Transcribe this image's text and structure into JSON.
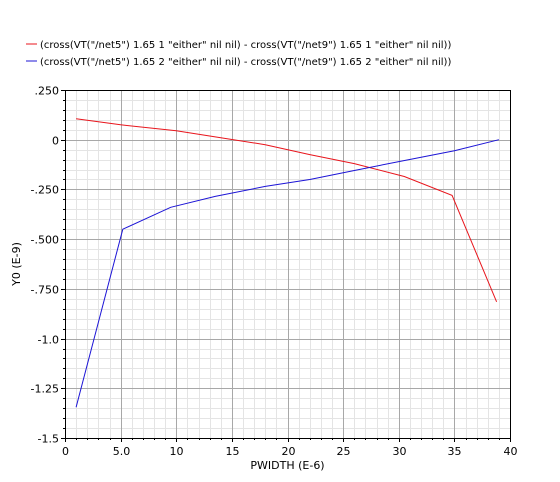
{
  "chart_data": {
    "type": "line",
    "title": "",
    "xlabel": "PWIDTH (E-6)",
    "ylabel": "Y0 (E-9)",
    "xlim": [
      0,
      40
    ],
    "ylim": [
      -1.5,
      0.25
    ],
    "x_ticks": [
      0,
      5,
      10,
      15,
      20,
      25,
      30,
      35,
      40
    ],
    "x_tick_labels": [
      "0",
      "5.0",
      "10",
      "15",
      "20",
      "25",
      "30",
      "35",
      "40"
    ],
    "y_ticks": [
      0.25,
      0,
      -0.25,
      -0.5,
      -0.75,
      -1.0,
      -1.25,
      -1.5
    ],
    "y_tick_labels": [
      ".250",
      "0",
      "-.250",
      "-.500",
      "-.750",
      "-1.0",
      "-1.25",
      "-1.5"
    ],
    "grid": true,
    "legend_position": "top-left",
    "series": [
      {
        "name": "(cross(VT(\"/net5\") 1.65 1 \"either\" nil nil) - cross(VT(\"/net9\") 1.65 1 \"either\" nil nil))",
        "color": "#e8151c",
        "x": [
          1,
          5,
          10,
          14,
          18,
          22,
          26,
          30.5,
          34.8,
          38.8
        ],
        "y": [
          0.105,
          0.075,
          0.045,
          0.01,
          -0.025,
          -0.075,
          -0.12,
          -0.185,
          -0.28,
          -0.815
        ]
      },
      {
        "name": "(cross(VT(\"/net5\") 1.65 2 \"either\" nil nil) - cross(VT(\"/net9\") 1.65 2 \"either\" nil nil))",
        "color": "#1c14d6",
        "x": [
          1,
          5.2,
          9.5,
          13.5,
          18,
          22,
          26,
          30,
          35,
          39
        ],
        "y": [
          -1.345,
          -0.45,
          -0.34,
          -0.285,
          -0.235,
          -0.2,
          -0.155,
          -0.11,
          -0.055,
          0.0
        ]
      }
    ]
  }
}
